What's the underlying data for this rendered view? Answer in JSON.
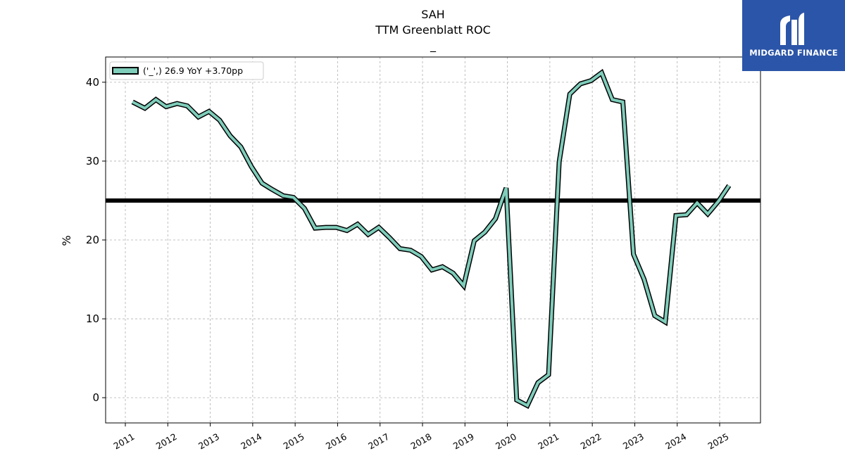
{
  "chart_data": {
    "type": "line",
    "title": "SAH",
    "subtitle": "TTM Greenblatt ROC",
    "subtitle2": "_",
    "xlabel": "",
    "ylabel": "%",
    "ylim": [
      -3.2,
      43.2
    ],
    "y_ticks": [
      0,
      10,
      20,
      30,
      40
    ],
    "x_ticks": [
      "2011",
      "2012",
      "2013",
      "2014",
      "2015",
      "2016",
      "2017",
      "2018",
      "2019",
      "2020",
      "2021",
      "2022",
      "2023",
      "2024",
      "2025"
    ],
    "grid": true,
    "legend_position": "top-left",
    "reference_line": 25.0,
    "series": [
      {
        "name": "('_',) 26.9 YoY +3.70pp",
        "color": "#7fcdbb",
        "x": [
          2011.17,
          2011.46,
          2011.72,
          2011.96,
          2012.22,
          2012.46,
          2012.72,
          2012.97,
          2013.22,
          2013.47,
          2013.72,
          2013.97,
          2014.22,
          2014.46,
          2014.72,
          2014.96,
          2015.22,
          2015.47,
          2015.72,
          2015.97,
          2016.22,
          2016.47,
          2016.72,
          2016.97,
          2017.22,
          2017.47,
          2017.72,
          2017.97,
          2018.22,
          2018.47,
          2018.72,
          2018.97,
          2019.22,
          2019.47,
          2019.72,
          2019.97,
          2020.22,
          2020.47,
          2020.72,
          2020.97,
          2021.22,
          2021.47,
          2021.72,
          2021.97,
          2022.22,
          2022.47,
          2022.72,
          2022.97,
          2023.22,
          2023.47,
          2023.72,
          2023.97,
          2024.22,
          2024.47,
          2024.72,
          2024.97,
          2025.22
        ],
        "values": [
          37.5,
          36.7,
          37.8,
          36.9,
          37.3,
          37.0,
          35.6,
          36.3,
          35.2,
          33.2,
          31.8,
          29.3,
          27.2,
          26.4,
          25.6,
          25.4,
          24.0,
          21.5,
          21.6,
          21.6,
          21.2,
          22.0,
          20.7,
          21.6,
          20.3,
          18.9,
          18.7,
          17.9,
          16.2,
          16.6,
          15.8,
          14.2,
          19.9,
          21.0,
          22.7,
          26.6,
          -0.3,
          -1.0,
          1.9,
          2.9,
          29.9,
          38.5,
          39.8,
          40.2,
          41.2,
          37.8,
          37.5,
          18.2,
          15.0,
          10.4,
          9.6,
          23.1,
          23.2,
          24.7,
          23.3,
          24.9,
          26.9
        ]
      }
    ]
  },
  "logo": {
    "text": "MIDGARD FINANCE",
    "color": "#2b55a8"
  }
}
